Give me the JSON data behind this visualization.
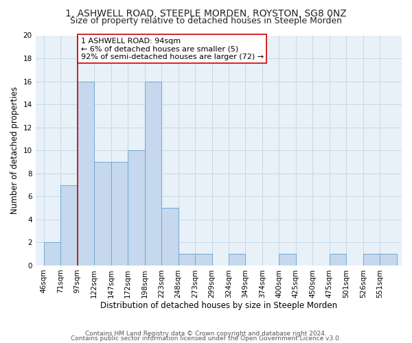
{
  "title": "1, ASHWELL ROAD, STEEPLE MORDEN, ROYSTON, SG8 0NZ",
  "subtitle": "Size of property relative to detached houses in Steeple Morden",
  "xlabel": "Distribution of detached houses by size in Steeple Morden",
  "ylabel": "Number of detached properties",
  "bin_labels": [
    "46sqm",
    "71sqm",
    "97sqm",
    "122sqm",
    "147sqm",
    "172sqm",
    "198sqm",
    "223sqm",
    "248sqm",
    "273sqm",
    "299sqm",
    "324sqm",
    "349sqm",
    "374sqm",
    "400sqm",
    "425sqm",
    "450sqm",
    "475sqm",
    "501sqm",
    "526sqm",
    "551sqm"
  ],
  "bar_values": [
    2,
    7,
    16,
    9,
    9,
    10,
    16,
    5,
    1,
    1,
    0,
    1,
    0,
    0,
    1,
    0,
    0,
    1,
    0,
    1,
    1
  ],
  "bar_color": "#c5d8ed",
  "bar_edge_color": "#6fa8d0",
  "ylim": [
    0,
    20
  ],
  "yticks": [
    0,
    2,
    4,
    6,
    8,
    10,
    12,
    14,
    16,
    18,
    20
  ],
  "property_line_index": 2,
  "property_line_color": "#cc0000",
  "annotation_text": "1 ASHWELL ROAD: 94sqm\n← 6% of detached houses are smaller (5)\n92% of semi-detached houses are larger (72) →",
  "annotation_box_color": "#ffffff",
  "annotation_box_edge_color": "#cc0000",
  "footer_line1": "Contains HM Land Registry data © Crown copyright and database right 2024.",
  "footer_line2": "Contains public sector information licensed under the Open Government Licence v3.0.",
  "background_color": "#ffffff",
  "plot_bg_color": "#e8f0f8",
  "grid_color": "#c8d8e8",
  "title_fontsize": 10,
  "subtitle_fontsize": 9,
  "axis_label_fontsize": 8.5,
  "tick_fontsize": 7.5,
  "annotation_fontsize": 8,
  "footer_fontsize": 6.5
}
